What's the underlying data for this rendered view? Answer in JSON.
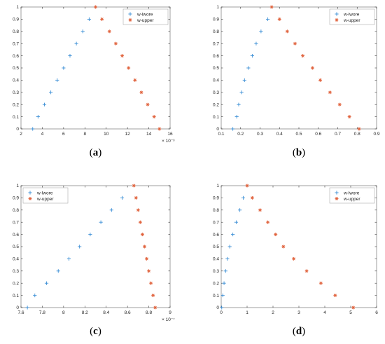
{
  "colors": {
    "lower": "#3b8fd6",
    "upper": "#e0603a",
    "axis": "#333333",
    "frame": "#888888"
  },
  "chart_data": [
    {
      "type": "scatter",
      "caption": "(a)",
      "legend": [
        "w-lwore",
        "w-upper"
      ],
      "legend_position": "top-right",
      "xlim": [
        2,
        16
      ],
      "ylim": [
        0,
        1
      ],
      "xticks": [
        "2",
        "4",
        "6",
        "8",
        "10",
        "12",
        "14",
        "16"
      ],
      "yticks": [
        "0",
        "0.1",
        "0.2",
        "0.3",
        "0.4",
        "0.5",
        "0.6",
        "0.7",
        "0.8",
        "0.9",
        "1"
      ],
      "x_exponent": "× 10⁻³",
      "series": [
        {
          "name": "w-lwore",
          "marker": "plus",
          "x": [
            3.1,
            3.6,
            4.2,
            4.8,
            5.4,
            6.0,
            6.6,
            7.2,
            7.8,
            8.4
          ],
          "y": [
            0,
            0.1,
            0.2,
            0.3,
            0.4,
            0.5,
            0.6,
            0.7,
            0.8,
            0.9
          ]
        },
        {
          "name": "w-upper",
          "marker": "star",
          "x": [
            9.0,
            9.6,
            10.3,
            10.9,
            11.5,
            12.1,
            12.7,
            13.3,
            13.9,
            14.5,
            15.0
          ],
          "y": [
            1,
            0.9,
            0.8,
            0.7,
            0.6,
            0.5,
            0.4,
            0.3,
            0.2,
            0.1,
            0
          ]
        }
      ]
    },
    {
      "type": "scatter",
      "caption": "(b)",
      "legend": [
        "w-lwore",
        "w-upper"
      ],
      "legend_position": "top-right",
      "xlim": [
        0.1,
        0.9
      ],
      "ylim": [
        0,
        1
      ],
      "xticks": [
        "0.1",
        "0.2",
        "0.3",
        "0.4",
        "0.5",
        "0.6",
        "0.7",
        "0.8",
        "0.9"
      ],
      "yticks": [
        "0",
        "0.1",
        "0.2",
        "0.3",
        "0.4",
        "0.5",
        "0.6",
        "0.7",
        "0.8",
        "0.9",
        "1"
      ],
      "x_exponent": "",
      "series": [
        {
          "name": "w-lwore",
          "marker": "plus",
          "x": [
            0.16,
            0.18,
            0.19,
            0.205,
            0.22,
            0.24,
            0.26,
            0.28,
            0.305,
            0.34
          ],
          "y": [
            0,
            0.1,
            0.2,
            0.3,
            0.4,
            0.5,
            0.6,
            0.7,
            0.8,
            0.9
          ]
        },
        {
          "name": "w-upper",
          "marker": "star",
          "x": [
            0.36,
            0.4,
            0.44,
            0.48,
            0.52,
            0.57,
            0.61,
            0.66,
            0.71,
            0.76,
            0.81
          ],
          "y": [
            1,
            0.9,
            0.8,
            0.7,
            0.6,
            0.5,
            0.4,
            0.3,
            0.2,
            0.1,
            0
          ]
        }
      ]
    },
    {
      "type": "scatter",
      "caption": "(c)",
      "legend": [
        "w-lwore",
        "w-upper"
      ],
      "legend_position": "top-left",
      "xlim": [
        7.6,
        9.0
      ],
      "ylim": [
        0,
        1
      ],
      "xticks": [
        "7.6",
        "7.8",
        "8",
        "8.2",
        "8.4",
        "8.6",
        "8.8",
        "9"
      ],
      "yticks": [
        "0",
        "0.1",
        "0.2",
        "0.3",
        "0.4",
        "0.5",
        "0.6",
        "0.7",
        "0.8",
        "0.9",
        "1"
      ],
      "x_exponent": "× 10⁻⁷",
      "series": [
        {
          "name": "w-lwore",
          "marker": "plus",
          "x": [
            7.66,
            7.73,
            7.84,
            7.95,
            8.05,
            8.15,
            8.25,
            8.35,
            8.45,
            8.55
          ],
          "y": [
            0,
            0.1,
            0.2,
            0.3,
            0.4,
            0.5,
            0.6,
            0.7,
            0.8,
            0.9
          ]
        },
        {
          "name": "w-upper",
          "marker": "star",
          "x": [
            8.66,
            8.68,
            8.7,
            8.72,
            8.74,
            8.76,
            8.78,
            8.8,
            8.82,
            8.84,
            8.86
          ],
          "y": [
            1,
            0.9,
            0.8,
            0.7,
            0.6,
            0.5,
            0.4,
            0.3,
            0.2,
            0.1,
            0
          ]
        }
      ]
    },
    {
      "type": "scatter",
      "caption": "(d)",
      "legend": [
        "w-lwore",
        "w-upper"
      ],
      "legend_position": "top-right",
      "xlim": [
        0,
        6
      ],
      "ylim": [
        0,
        1
      ],
      "xticks": [
        "0",
        "1",
        "2",
        "3",
        "4",
        "5",
        "6"
      ],
      "yticks": [
        "0",
        "0.1",
        "0.2",
        "0.3",
        "0.4",
        "0.5",
        "0.6",
        "0.7",
        "0.8",
        "0.9",
        "1"
      ],
      "x_exponent": "",
      "series": [
        {
          "name": "w-lwore",
          "marker": "plus",
          "x": [
            0.02,
            0.06,
            0.11,
            0.17,
            0.24,
            0.33,
            0.45,
            0.58,
            0.72,
            0.85
          ],
          "y": [
            0,
            0.1,
            0.2,
            0.3,
            0.4,
            0.5,
            0.6,
            0.7,
            0.8,
            0.9
          ]
        },
        {
          "name": "w-upper",
          "marker": "star",
          "x": [
            1.0,
            1.2,
            1.5,
            1.8,
            2.1,
            2.4,
            2.8,
            3.3,
            3.85,
            4.4,
            5.1
          ],
          "y": [
            1,
            0.9,
            0.8,
            0.7,
            0.6,
            0.5,
            0.4,
            0.3,
            0.2,
            0.1,
            0
          ]
        }
      ]
    }
  ]
}
